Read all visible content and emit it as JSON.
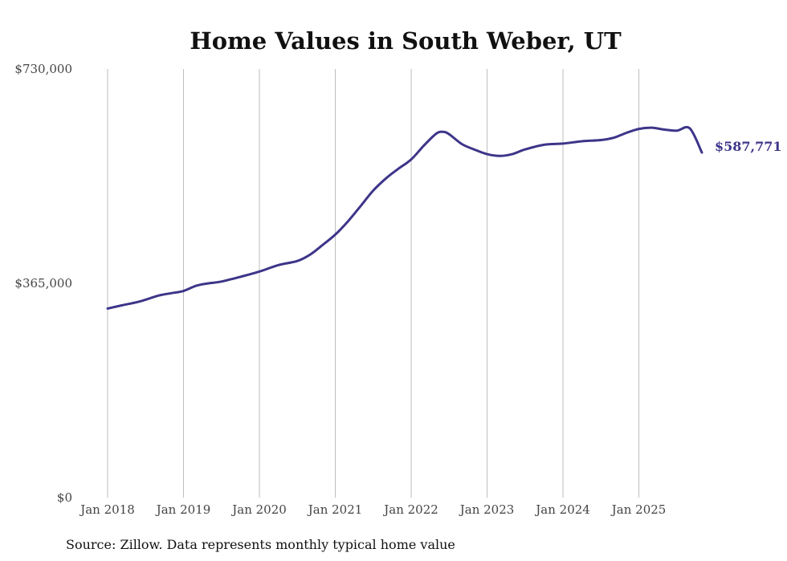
{
  "chart_data": {
    "type": "line",
    "title": "Home Values in South Weber, UT",
    "xlabel": "",
    "ylabel": "",
    "ylim": [
      0,
      730000
    ],
    "y_ticks": [
      {
        "value": 0,
        "label": "$0"
      },
      {
        "value": 365000,
        "label": "$365,000"
      },
      {
        "value": 730000,
        "label": "$730,000"
      }
    ],
    "x_ticks": [
      {
        "value": 2018.0,
        "label": "Jan 2018"
      },
      {
        "value": 2019.0,
        "label": "Jan 2019"
      },
      {
        "value": 2020.0,
        "label": "Jan 2020"
      },
      {
        "value": 2021.0,
        "label": "Jan 2021"
      },
      {
        "value": 2022.0,
        "label": "Jan 2022"
      },
      {
        "value": 2023.0,
        "label": "Jan 2023"
      },
      {
        "value": 2024.0,
        "label": "Jan 2024"
      },
      {
        "value": 2025.0,
        "label": "Jan 2025"
      }
    ],
    "xlim": [
      2018.0,
      2025.83
    ],
    "grid": "vertical",
    "series": [
      {
        "name": "Typical home value",
        "color": "#3d3589",
        "end_label": "$587,771",
        "x": [
          2018.0,
          2018.17,
          2018.42,
          2018.67,
          2018.83,
          2019.0,
          2019.17,
          2019.33,
          2019.5,
          2019.75,
          2020.0,
          2020.25,
          2020.5,
          2020.67,
          2020.83,
          2021.0,
          2021.17,
          2021.33,
          2021.5,
          2021.67,
          2021.83,
          2022.0,
          2022.17,
          2022.33,
          2022.42,
          2022.5,
          2022.67,
          2022.83,
          2023.0,
          2023.17,
          2023.33,
          2023.5,
          2023.75,
          2024.0,
          2024.25,
          2024.5,
          2024.67,
          2024.83,
          2025.0,
          2025.17,
          2025.33,
          2025.5,
          2025.67,
          2025.83
        ],
        "y": [
          322000,
          327000,
          334000,
          344000,
          348000,
          352000,
          361000,
          365000,
          368000,
          376000,
          385000,
          396000,
          403000,
          414000,
          430000,
          448000,
          471000,
          496000,
          523000,
          544000,
          560000,
          576000,
          600000,
          620000,
          623000,
          619000,
          602000,
          593000,
          585000,
          582000,
          585000,
          593000,
          601000,
          603000,
          607000,
          609000,
          613000,
          621000,
          628000,
          630000,
          627000,
          625000,
          629000,
          587771
        ]
      }
    ]
  },
  "source_note": "Source: Zillow. Data represents monthly typical home value"
}
